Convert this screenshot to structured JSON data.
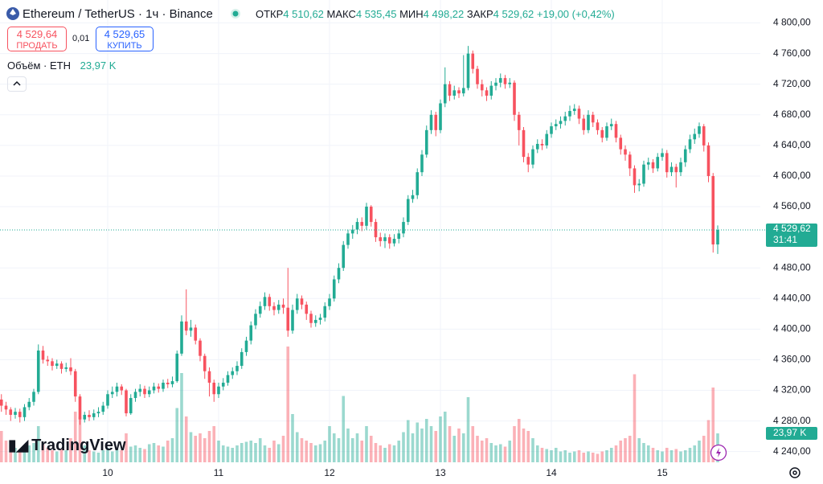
{
  "header": {
    "symbol": "Ethereum / TetherUS · 1ч · Binance",
    "open_label": "ОТКР",
    "open": "4 510,62",
    "high_label": "МАКС",
    "high": "4 535,45",
    "low_label": "МИН",
    "low": "4 498,22",
    "close_label": "ЗАКР",
    "close": "4 529,62",
    "change": "+19,00 (+0,42%)"
  },
  "trade": {
    "sell_price": "4 529,64",
    "sell_label": "ПРОДАТЬ",
    "spread": "0,01",
    "buy_price": "4 529,65",
    "buy_label": "КУПИТЬ"
  },
  "volume_legend": {
    "label": "Объём · ETH"
  },
  "branding": "TradingView",
  "chart_data": {
    "type": "candlestick",
    "categories": [
      null,
      null,
      null,
      null,
      null,
      null,
      null,
      null,
      null,
      null,
      null,
      null,
      null,
      null,
      null,
      null,
      null,
      null,
      null,
      null,
      null,
      null,
      null,
      "10",
      null,
      null,
      null,
      null,
      null,
      null,
      null,
      null,
      null,
      null,
      null,
      null,
      null,
      null,
      null,
      null,
      null,
      null,
      null,
      null,
      null,
      null,
      null,
      "11",
      null,
      null,
      null,
      null,
      null,
      null,
      null,
      null,
      null,
      null,
      null,
      null,
      null,
      null,
      null,
      null,
      null,
      null,
      null,
      null,
      null,
      null,
      null,
      "12",
      null,
      null,
      null,
      null,
      null,
      null,
      null,
      null,
      null,
      null,
      null,
      null,
      null,
      null,
      null,
      null,
      null,
      null,
      null,
      null,
      null,
      null,
      null,
      "13",
      null,
      null,
      null,
      null,
      null,
      null,
      null,
      null,
      null,
      null,
      null,
      null,
      null,
      null,
      null,
      null,
      null,
      null,
      null,
      null,
      null,
      null,
      null,
      "14",
      null,
      null,
      null,
      null,
      null,
      null,
      null,
      null,
      null,
      null,
      null,
      null,
      null,
      null,
      null,
      null,
      null,
      null,
      null,
      null,
      null,
      null,
      null,
      "15",
      null,
      null,
      null,
      null,
      null,
      null,
      null,
      null,
      null,
      null,
      null,
      null
    ],
    "open": [
      4308,
      4300,
      4295,
      4288,
      4292,
      4285,
      4298,
      4305,
      4318,
      4372,
      4360,
      4358,
      4352,
      4355,
      4348,
      4350,
      4345,
      4312,
      4282,
      4288,
      4285,
      4290,
      4292,
      4300,
      4315,
      4318,
      4325,
      4320,
      4290,
      4310,
      4318,
      4322,
      4315,
      4320,
      4325,
      4322,
      4330,
      4328,
      4332,
      4368,
      4410,
      4398,
      4402,
      4385,
      4365,
      4345,
      4330,
      4315,
      4325,
      4330,
      4340,
      4345,
      4352,
      4370,
      4385,
      4405,
      4420,
      4430,
      4442,
      4430,
      4425,
      4432,
      4428,
      4398,
      4425,
      4440,
      4432,
      4420,
      4408,
      4412,
      4415,
      4430,
      4440,
      4465,
      4480,
      4510,
      4525,
      4530,
      4540,
      4535,
      4560,
      4540,
      4520,
      4515,
      4520,
      4512,
      4518,
      4525,
      4540,
      4570,
      4575,
      4605,
      4628,
      4660,
      4680,
      4660,
      4695,
      4720,
      4705,
      4712,
      4708,
      4715,
      4760,
      4740,
      4720,
      4712,
      4705,
      4718,
      4722,
      4728,
      4720,
      4722,
      4680,
      4660,
      4625,
      4615,
      4635,
      4642,
      4640,
      4655,
      4665,
      4668,
      4672,
      4678,
      4685,
      4688,
      4675,
      4660,
      4680,
      4670,
      4660,
      4650,
      4665,
      4668,
      4650,
      4635,
      4628,
      4610,
      4588,
      4590,
      4615,
      4618,
      4610,
      4625,
      4630,
      4605,
      4612,
      4605,
      4618,
      4635,
      4648,
      4655,
      4665,
      4640,
      4600,
      4510.62
    ],
    "high": [
      4315,
      4305,
      4298,
      4297,
      4296,
      4302,
      4310,
      4322,
      4380,
      4378,
      4365,
      4362,
      4360,
      4358,
      4356,
      4362,
      4348,
      4315,
      4292,
      4294,
      4295,
      4298,
      4305,
      4320,
      4325,
      4330,
      4328,
      4322,
      4315,
      4322,
      4328,
      4326,
      4325,
      4330,
      4329,
      4334,
      4335,
      4338,
      4372,
      4418,
      4452,
      4412,
      4406,
      4388,
      4368,
      4350,
      4334,
      4330,
      4336,
      4345,
      4350,
      4358,
      4375,
      4390,
      4410,
      4426,
      4436,
      4448,
      4446,
      4435,
      4438,
      4440,
      4480,
      4432,
      4446,
      4444,
      4436,
      4424,
      4418,
      4420,
      4435,
      4446,
      4470,
      4486,
      4515,
      4530,
      4536,
      4545,
      4546,
      4565,
      4562,
      4544,
      4526,
      4525,
      4524,
      4524,
      4530,
      4546,
      4575,
      4582,
      4610,
      4634,
      4666,
      4686,
      4684,
      4700,
      4742,
      4724,
      4718,
      4716,
      4758,
      4770,
      4764,
      4744,
      4726,
      4716,
      4724,
      4728,
      4734,
      4732,
      4728,
      4725,
      4684,
      4664,
      4630,
      4640,
      4648,
      4648,
      4660,
      4670,
      4674,
      4678,
      4684,
      4692,
      4694,
      4692,
      4680,
      4686,
      4684,
      4674,
      4664,
      4670,
      4675,
      4672,
      4654,
      4640,
      4632,
      4614,
      4596,
      4620,
      4624,
      4622,
      4630,
      4636,
      4634,
      4618,
      4616,
      4624,
      4640,
      4654,
      4662,
      4670,
      4668,
      4644,
      4604,
      4535.45
    ],
    "low": [
      4292,
      4288,
      4280,
      4283,
      4278,
      4280,
      4294,
      4300,
      4315,
      4355,
      4352,
      4346,
      4348,
      4342,
      4344,
      4340,
      4305,
      4275,
      4278,
      4280,
      4281,
      4285,
      4288,
      4296,
      4310,
      4312,
      4314,
      4286,
      4288,
      4305,
      4312,
      4310,
      4311,
      4316,
      4317,
      4318,
      4323,
      4324,
      4330,
      4365,
      4392,
      4390,
      4380,
      4358,
      4335,
      4312,
      4305,
      4310,
      4320,
      4326,
      4335,
      4340,
      4348,
      4365,
      4380,
      4400,
      4415,
      4425,
      4424,
      4418,
      4420,
      4420,
      4390,
      4394,
      4420,
      4426,
      4412,
      4402,
      4403,
      4406,
      4410,
      4425,
      4436,
      4460,
      4476,
      4505,
      4518,
      4524,
      4528,
      4530,
      4534,
      4514,
      4508,
      4506,
      4505,
      4508,
      4512,
      4520,
      4536,
      4565,
      4570,
      4600,
      4624,
      4655,
      4652,
      4656,
      4690,
      4698,
      4700,
      4702,
      4704,
      4712,
      4734,
      4714,
      4704,
      4698,
      4700,
      4712,
      4716,
      4714,
      4715,
      4672,
      4640,
      4618,
      4605,
      4610,
      4630,
      4634,
      4636,
      4650,
      4660,
      4662,
      4666,
      4672,
      4680,
      4668,
      4654,
      4656,
      4664,
      4654,
      4644,
      4646,
      4660,
      4644,
      4628,
      4620,
      4600,
      4578,
      4580,
      4586,
      4608,
      4604,
      4606,
      4620,
      4598,
      4600,
      4585,
      4600,
      4612,
      4630,
      4642,
      4650,
      4632,
      4592,
      4500,
      4498.22
    ],
    "close": [
      4300,
      4295,
      4288,
      4292,
      4285,
      4298,
      4305,
      4318,
      4372,
      4360,
      4358,
      4352,
      4355,
      4348,
      4350,
      4345,
      4312,
      4282,
      4288,
      4285,
      4290,
      4292,
      4300,
      4315,
      4318,
      4325,
      4320,
      4290,
      4310,
      4318,
      4322,
      4315,
      4320,
      4325,
      4322,
      4330,
      4328,
      4332,
      4368,
      4410,
      4398,
      4402,
      4385,
      4365,
      4345,
      4330,
      4315,
      4325,
      4330,
      4340,
      4345,
      4352,
      4370,
      4385,
      4405,
      4420,
      4430,
      4442,
      4430,
      4425,
      4432,
      4428,
      4398,
      4425,
      4440,
      4432,
      4420,
      4408,
      4412,
      4415,
      4430,
      4440,
      4465,
      4480,
      4510,
      4525,
      4530,
      4540,
      4535,
      4560,
      4540,
      4520,
      4515,
      4520,
      4512,
      4518,
      4525,
      4540,
      4570,
      4575,
      4605,
      4628,
      4660,
      4680,
      4660,
      4695,
      4720,
      4705,
      4712,
      4708,
      4715,
      4760,
      4740,
      4720,
      4712,
      4705,
      4718,
      4722,
      4728,
      4720,
      4722,
      4680,
      4660,
      4625,
      4615,
      4635,
      4642,
      4640,
      4655,
      4665,
      4668,
      4672,
      4678,
      4685,
      4688,
      4675,
      4660,
      4680,
      4670,
      4660,
      4650,
      4665,
      4668,
      4650,
      4635,
      4628,
      4610,
      4588,
      4590,
      4615,
      4618,
      4610,
      4625,
      4630,
      4605,
      4612,
      4605,
      4618,
      4635,
      4648,
      4655,
      4665,
      4640,
      4600,
      4510.62,
      4529.62
    ],
    "volume": {
      "values": [
        26,
        18,
        14,
        12,
        10,
        11,
        14,
        16,
        30,
        15,
        12,
        10,
        9,
        11,
        10,
        20,
        42,
        38,
        14,
        10,
        9,
        8,
        10,
        12,
        9,
        11,
        10,
        24,
        13,
        14,
        12,
        11,
        15,
        16,
        14,
        13,
        18,
        20,
        45,
        74,
        38,
        25,
        22,
        24,
        20,
        26,
        30,
        18,
        14,
        13,
        12,
        14,
        16,
        17,
        18,
        16,
        20,
        14,
        12,
        18,
        15,
        22,
        96,
        40,
        25,
        20,
        18,
        16,
        14,
        15,
        18,
        30,
        24,
        20,
        55,
        28,
        20,
        24,
        18,
        30,
        22,
        16,
        14,
        12,
        15,
        14,
        18,
        25,
        35,
        24,
        33,
        28,
        36,
        30,
        26,
        38,
        42,
        30,
        22,
        28,
        24,
        54,
        30,
        22,
        18,
        20,
        16,
        14,
        15,
        13,
        18,
        30,
        36,
        28,
        26,
        20,
        14,
        12,
        11,
        10,
        12,
        9,
        10,
        8,
        9,
        10,
        8,
        9,
        8,
        7,
        9,
        10,
        12,
        14,
        18,
        20,
        22,
        73,
        20,
        16,
        14,
        12,
        10,
        9,
        12,
        10,
        11,
        9,
        10,
        12,
        14,
        18,
        22,
        35,
        62,
        23.97
      ],
      "value_labels": [
        null,
        null,
        null,
        null,
        null,
        null,
        null,
        null,
        null,
        null,
        null,
        null,
        null,
        null,
        null,
        null,
        null,
        null,
        null,
        null,
        null,
        null,
        null,
        null,
        null,
        null,
        null,
        null,
        null,
        null,
        null,
        null,
        null,
        null,
        null,
        null,
        null,
        null,
        null,
        null,
        null,
        null,
        null,
        null,
        null,
        null,
        null,
        null,
        null,
        null,
        null,
        null,
        null,
        null,
        null,
        null,
        null,
        null,
        null,
        null,
        null,
        null,
        null,
        null,
        null,
        null,
        null,
        null,
        null,
        null,
        null,
        null,
        null,
        null,
        null,
        null,
        null,
        null,
        null,
        null,
        null,
        null,
        null,
        null,
        null,
        null,
        null,
        null,
        null,
        null,
        null,
        null,
        null,
        null,
        null,
        null,
        null,
        null,
        null,
        null,
        null,
        null,
        null,
        null,
        null,
        null,
        null,
        null,
        null,
        null,
        null,
        null,
        null,
        null,
        null,
        null,
        null,
        null,
        null,
        null,
        null,
        null,
        null,
        null,
        null,
        null,
        null,
        null,
        null,
        null,
        null,
        null,
        null,
        null,
        null,
        null,
        null,
        null,
        null,
        null,
        null,
        null,
        null,
        null,
        null,
        null,
        null,
        null,
        null,
        null,
        null,
        null,
        null,
        null,
        null,
        "23,97 K"
      ],
      "ylim": [
        0,
        100
      ]
    },
    "up_color": "#22ab94",
    "down_color": "#f7525f",
    "ylim": [
      4226,
      4830
    ],
    "yticks": [
      {
        "value": 4240,
        "label": "4 240,00"
      },
      {
        "value": 4280,
        "label": "4 280,00"
      },
      {
        "value": 4320,
        "label": "4 320,00"
      },
      {
        "value": 4360,
        "label": "4 360,00"
      },
      {
        "value": 4400,
        "label": "4 400,00"
      },
      {
        "value": 4440,
        "label": "4 440,00"
      },
      {
        "value": 4480,
        "label": "4 480,00"
      },
      {
        "value": 4560,
        "label": "4 560,00"
      },
      {
        "value": 4600,
        "label": "4 600,00"
      },
      {
        "value": 4640,
        "label": "4 640,00"
      },
      {
        "value": 4680,
        "label": "4 680,00"
      },
      {
        "value": 4720,
        "label": "4 720,00"
      },
      {
        "value": 4760,
        "label": "4 760,00"
      },
      {
        "value": 4800,
        "label": "4 800,00"
      }
    ],
    "grid": true,
    "last_price": {
      "value": 4529.62,
      "label": "4 529,62"
    },
    "countdown": "31:41"
  }
}
